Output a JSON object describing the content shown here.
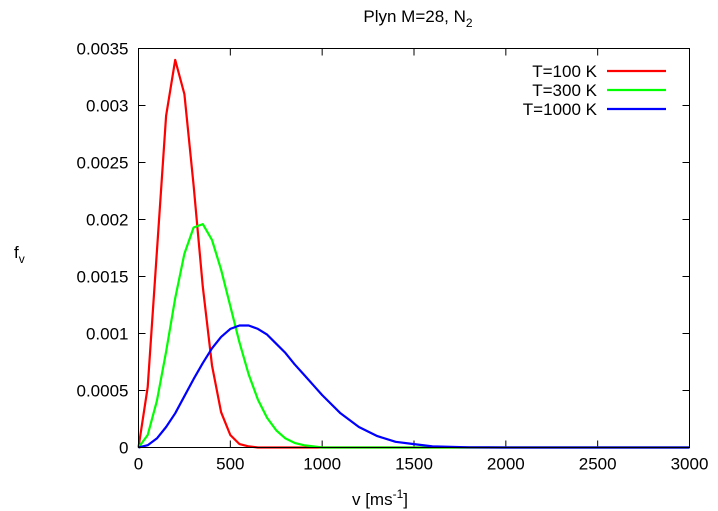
{
  "chart_data": {
    "type": "line",
    "title": {
      "main": "Plyn M=28, N",
      "sub": "2"
    },
    "xlabel": {
      "main": "v [ms",
      "sup": "-1",
      "end": "]"
    },
    "ylabel": {
      "main": "f",
      "sub": "v"
    },
    "xlim": [
      0,
      3000
    ],
    "ylim": [
      0,
      0.0035
    ],
    "xticks": [
      0,
      500,
      1000,
      1500,
      2000,
      2500,
      3000
    ],
    "xtick_labels": [
      "0",
      "500",
      "1000",
      "1500",
      "2000",
      "2500",
      "3000"
    ],
    "yticks": [
      0,
      0.0005,
      0.001,
      0.0015,
      0.002,
      0.0025,
      0.003,
      0.0035
    ],
    "ytick_labels": [
      "0",
      "0.0005",
      "0.001",
      "0.0015",
      "0.002",
      "0.0025",
      "0.003",
      "0.0035"
    ],
    "grid": false,
    "legend_position": "top-right",
    "x": [
      0,
      50,
      100,
      150,
      200,
      250,
      300,
      350,
      400,
      450,
      500,
      550,
      600,
      650,
      700,
      750,
      800,
      850,
      900,
      950,
      1000,
      1100,
      1200,
      1300,
      1400,
      1500,
      1600,
      1700,
      1800,
      1900,
      2000,
      2100,
      2200,
      2300,
      2400,
      2500,
      2600,
      2700,
      2800,
      2900,
      3000
    ],
    "series": [
      {
        "name": "T=100 K",
        "color": "#ff0000",
        "values": [
          0,
          0.00053,
          0.00172,
          0.00291,
          0.0034,
          0.0031,
          0.0023,
          0.00141,
          0.00072,
          0.00031,
          0.00011,
          3e-05,
          1e-05,
          0,
          0,
          0,
          0,
          0,
          0,
          0,
          0,
          0,
          0,
          0,
          0,
          0,
          0,
          0,
          0,
          0,
          0,
          0,
          0,
          0,
          0,
          0,
          0,
          0,
          0,
          0,
          0
        ]
      },
      {
        "name": "T=300 K",
        "color": "#00ff00",
        "values": [
          0,
          0.00011,
          0.00041,
          0.00084,
          0.00131,
          0.0017,
          0.00193,
          0.00196,
          0.00182,
          0.00156,
          0.00124,
          0.00092,
          0.00064,
          0.00042,
          0.00026,
          0.00015,
          8e-05,
          4e-05,
          2e-05,
          1e-05,
          0,
          0,
          0,
          0,
          0,
          0,
          0,
          0,
          0,
          0,
          0,
          0,
          0,
          0,
          0,
          0,
          0,
          0,
          0,
          0,
          0
        ]
      },
      {
        "name": "T=1000 K",
        "color": "#0000ff",
        "values": [
          0,
          2e-05,
          8e-05,
          0.00018,
          0.0003,
          0.00045,
          0.0006,
          0.00074,
          0.00087,
          0.00097,
          0.00104,
          0.00107,
          0.00107,
          0.00104,
          0.00099,
          0.00091,
          0.00083,
          0.00073,
          0.00064,
          0.00055,
          0.00046,
          0.0003,
          0.00018,
          0.0001,
          5e-05,
          3e-05,
          1e-05,
          5e-06,
          2e-06,
          1e-06,
          0,
          0,
          0,
          0,
          0,
          0,
          0,
          0,
          0,
          0,
          0
        ]
      }
    ]
  }
}
